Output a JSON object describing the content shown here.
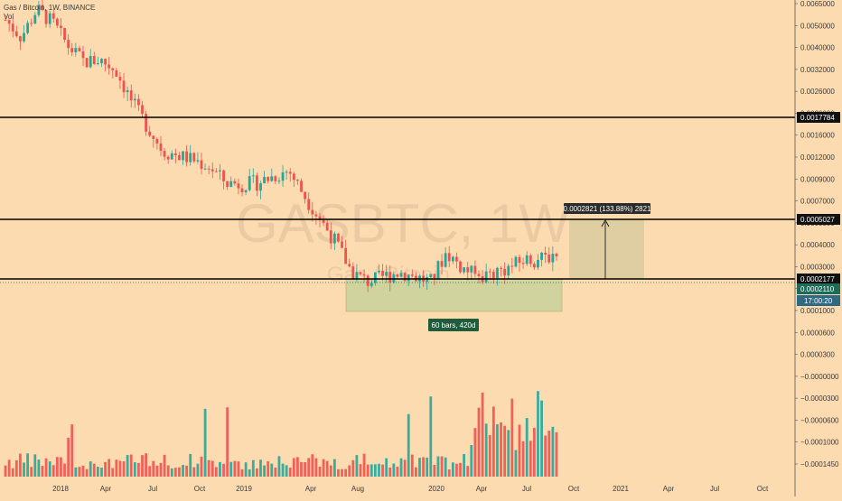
{
  "header": {
    "symbol_title": "Gas / Bitcoin, 1W, BINANCE",
    "volume_label": "Vol"
  },
  "watermark": {
    "ticker": "GASBTC, 1W",
    "name": "Gas / Bitcoin"
  },
  "colors": {
    "background": "#fcdbb0",
    "up": "#26a69a",
    "down": "#ef5350",
    "line": "#000000",
    "range_fill": "#c9d29a",
    "projection_fill": "#dccca0",
    "label_bg": "#2b2b2b",
    "bars_label_bg": "#1f5c3c",
    "price_tag_bg": "#1f6b5a"
  },
  "price_axis": {
    "ticks": [
      "0.0065000",
      "0.0050000",
      "0.0040000",
      "0.0032000",
      "0.0026000",
      "0.0020000",
      "0.0016000",
      "0.0012000",
      "0.0009000",
      "0.0007000",
      "0.0005500",
      "0.0004000",
      "0.0003000",
      "0.0002000",
      "0.0001000",
      "0.0000600",
      "0.0000300",
      "−0.0000000",
      "−0.0000300",
      "−0.0000600",
      "−0.0001000",
      "−0.0001450"
    ],
    "horizontal_lines": [
      {
        "label": "0.0017784"
      },
      {
        "label": "0.0005027"
      },
      {
        "label": "0.0002177"
      }
    ],
    "last_price_label": "0.0002110",
    "countdown_label": "17:00:20"
  },
  "time_axis": {
    "labels": [
      "2018",
      "Apr",
      "Jul",
      "Oct",
      "2019",
      "Apr",
      "Aug",
      "2020",
      "Apr",
      "Jul",
      "Oct",
      "2021",
      "Apr",
      "Jul",
      "Oct"
    ]
  },
  "drawings": {
    "measure_label": "0.0002821 (133.88%) 2821",
    "range_label": "60 bars, 420d"
  },
  "chart_data": {
    "type": "candlestick",
    "title": "Gas / Bitcoin, 1W, BINANCE",
    "y_scale": "log",
    "ylim": [
      6e-05,
      0.0065
    ],
    "x_range": [
      "2017-Q4",
      "2021-Q4"
    ],
    "horizontal_levels": [
      0.0017784,
      0.0005027,
      0.0002177
    ],
    "last_price": 0.000211,
    "measure": {
      "change": 0.0002821,
      "percent": 133.88,
      "ticks": 2821
    },
    "range_box": {
      "bars": 60,
      "days": 420
    },
    "series": [
      {
        "name": "price",
        "trend_points": [
          [
            "2017-Oct",
            0.0052
          ],
          [
            "2017-Nov",
            0.0041
          ],
          [
            "2017-Dec",
            0.006
          ],
          [
            "2018-Jan",
            0.005
          ],
          [
            "2018-Feb",
            0.0036
          ],
          [
            "2018-Mar",
            0.0029
          ],
          [
            "2018-Apr",
            0.003
          ],
          [
            "2018-May",
            0.0026
          ],
          [
            "2018-Jun",
            0.0017
          ],
          [
            "2018-Jul",
            0.0012
          ],
          [
            "2018-Aug",
            0.00085
          ],
          [
            "2018-Sep",
            0.0008
          ],
          [
            "2018-Oct",
            0.00075
          ],
          [
            "2018-Nov",
            0.00068
          ],
          [
            "2018-Dec",
            0.00055
          ],
          [
            "2019-Jan",
            0.00054
          ],
          [
            "2019-Feb",
            0.00055
          ],
          [
            "2019-Mar",
            0.0006
          ],
          [
            "2019-Apr",
            0.00065
          ],
          [
            "2019-May",
            0.00046
          ],
          [
            "2019-Jun",
            0.00033
          ],
          [
            "2019-Jul",
            0.00024
          ],
          [
            "2019-Aug",
            0.00016
          ],
          [
            "2019-Sep",
            0.00014
          ],
          [
            "2019-Oct",
            0.00015
          ],
          [
            "2019-Nov",
            0.00016
          ],
          [
            "2019-Dec",
            0.00015
          ],
          [
            "2020-Jan",
            0.00014
          ],
          [
            "2020-Feb",
            0.00021
          ],
          [
            "2020-Mar",
            0.00017
          ],
          [
            "2020-Apr",
            0.00015
          ],
          [
            "2020-May",
            0.00016
          ],
          [
            "2020-Jun",
            0.00017
          ],
          [
            "2020-Jul",
            0.00019
          ],
          [
            "2020-Aug",
            0.00019
          ],
          [
            "2020-Sep",
            0.00021
          ]
        ]
      }
    ]
  }
}
